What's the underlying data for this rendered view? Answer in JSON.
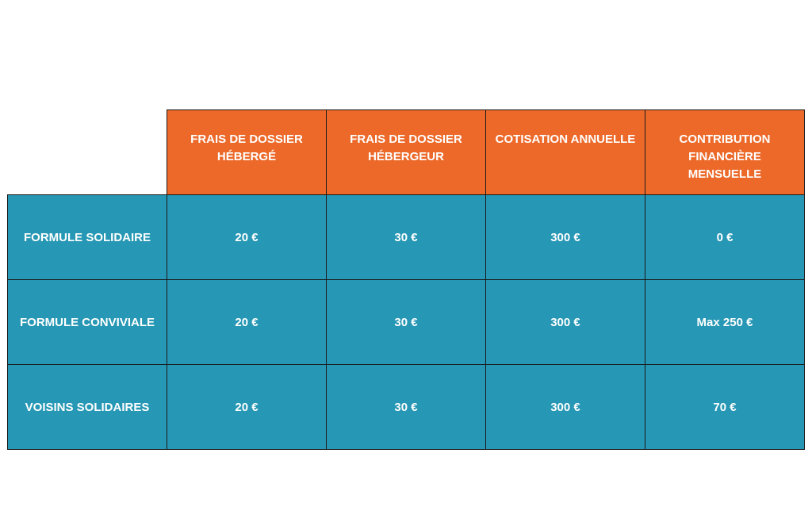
{
  "colors": {
    "header_bg": "#ec6929",
    "body_bg": "#2697b4",
    "text": "#ffffff",
    "border": "#1a1a1a"
  },
  "table": {
    "columns": [
      "FRAIS DE DOSSIER\nHÉBERGÉ",
      "FRAIS DE DOSSIER\nHÉBERGEUR",
      "COTISATION ANNUELLE",
      "CONTRIBUTION\nFINANCIÈRE\nMENSUELLE"
    ],
    "rows": [
      {
        "label": "FORMULE SOLIDAIRE",
        "values": [
          "20 €",
          "30 €",
          "300 €",
          "0 €"
        ]
      },
      {
        "label": "FORMULE CONVIVIALE",
        "values": [
          "20 €",
          "30 €",
          "300 €",
          "Max 250 €"
        ]
      },
      {
        "label": "VOISINS SOLIDAIRES",
        "values": [
          "20 €",
          "30 €",
          "300 €",
          "70 €"
        ]
      }
    ]
  }
}
